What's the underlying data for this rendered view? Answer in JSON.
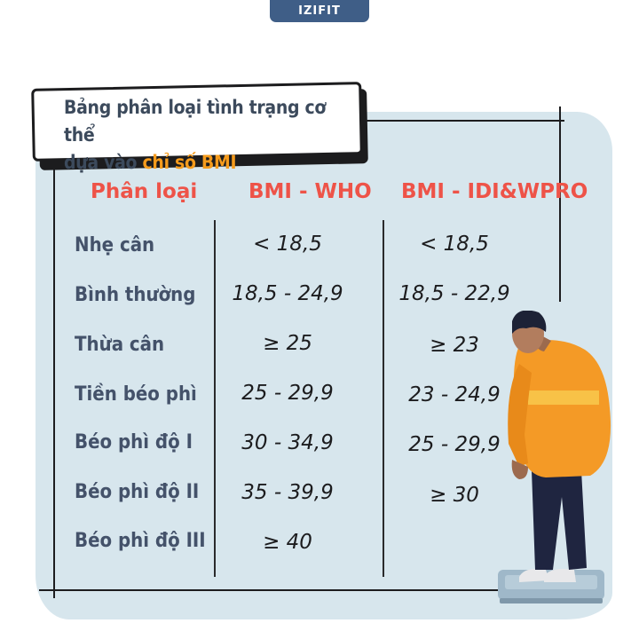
{
  "brand": "IZIFIT",
  "title": {
    "line1": "Bảng phân loại tình trạng cơ thể",
    "line2_prefix": "dựa vào ",
    "line2_highlight": "chỉ số BMI"
  },
  "table": {
    "headers": [
      "Phân loại",
      "BMI - WHO",
      "BMI - IDI&WPRO"
    ],
    "rows": [
      {
        "label": "Nhẹ cân",
        "who": "< 18,5",
        "idi": "< 18,5"
      },
      {
        "label": "Bình thường",
        "who": "18,5 - 24,9",
        "idi": "18,5 - 22,9"
      },
      {
        "label": "Thừa cân",
        "who": "≥ 25",
        "idi": "≥ 23"
      },
      {
        "label": "Tiền béo phì",
        "who": "25 - 29,9",
        "idi": "23 - 24,9"
      },
      {
        "label": "Béo phì độ I",
        "who": "30 - 34,9",
        "idi": "25 - 29,9"
      },
      {
        "label": "Béo phì độ II",
        "who": "35 - 39,9",
        "idi": "≥ 30"
      },
      {
        "label": "Béo phì độ III",
        "who": "≥ 40",
        "idi": ""
      }
    ]
  },
  "colors": {
    "header_red": "#ee5348",
    "highlight_orange": "#f59b1c",
    "label_slate": "#44526a",
    "panel_blue": "#d7e6ed",
    "brand_navy": "#3f5e87"
  },
  "illustration": "overweight-person-on-scale"
}
